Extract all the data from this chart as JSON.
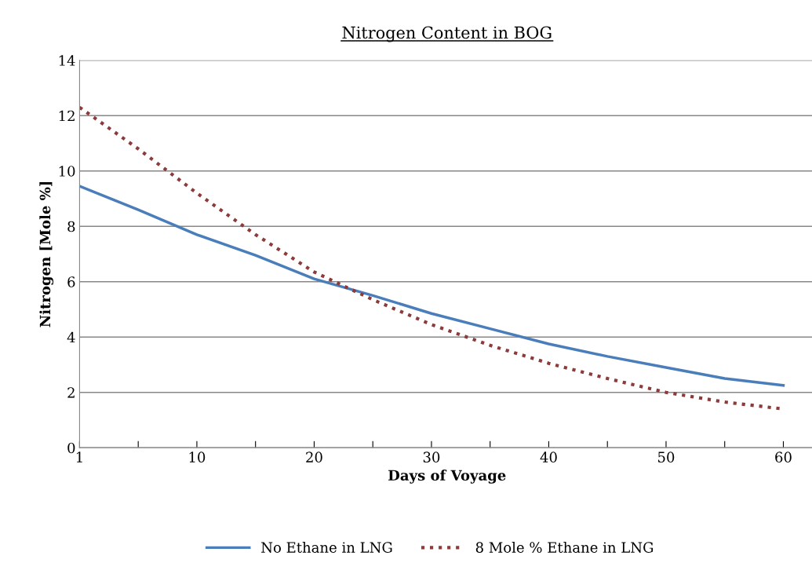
{
  "chart_data": {
    "type": "line",
    "title": "Nitrogen Content in BOG",
    "xlabel": "Days of Voyage",
    "ylabel": "Nitrogen [Mole %]",
    "categories": [
      "1",
      null,
      "10",
      null,
      "20",
      null,
      "30",
      null,
      "40",
      null,
      "50",
      null,
      "60"
    ],
    "series": [
      {
        "name": "No Ethane in LNG",
        "color": "#4a7ebb",
        "line_style": "solid",
        "values": [
          9.45,
          8.6,
          7.7,
          6.95,
          6.1,
          5.5,
          4.85,
          4.3,
          3.75,
          3.3,
          2.9,
          2.5,
          2.25
        ]
      },
      {
        "name": "8 Mole % Ethane in LNG",
        "color": "#8c3a3a",
        "line_style": "dotted",
        "values": [
          12.3,
          10.8,
          9.2,
          7.7,
          6.35,
          5.35,
          4.45,
          3.7,
          3.05,
          2.5,
          2.0,
          1.65,
          1.4
        ]
      }
    ],
    "ylim": [
      0,
      14
    ],
    "yticks": [
      0,
      2,
      4,
      6,
      8,
      10,
      12,
      14
    ],
    "grid": "y",
    "legend": "bottom",
    "marker": "none"
  }
}
